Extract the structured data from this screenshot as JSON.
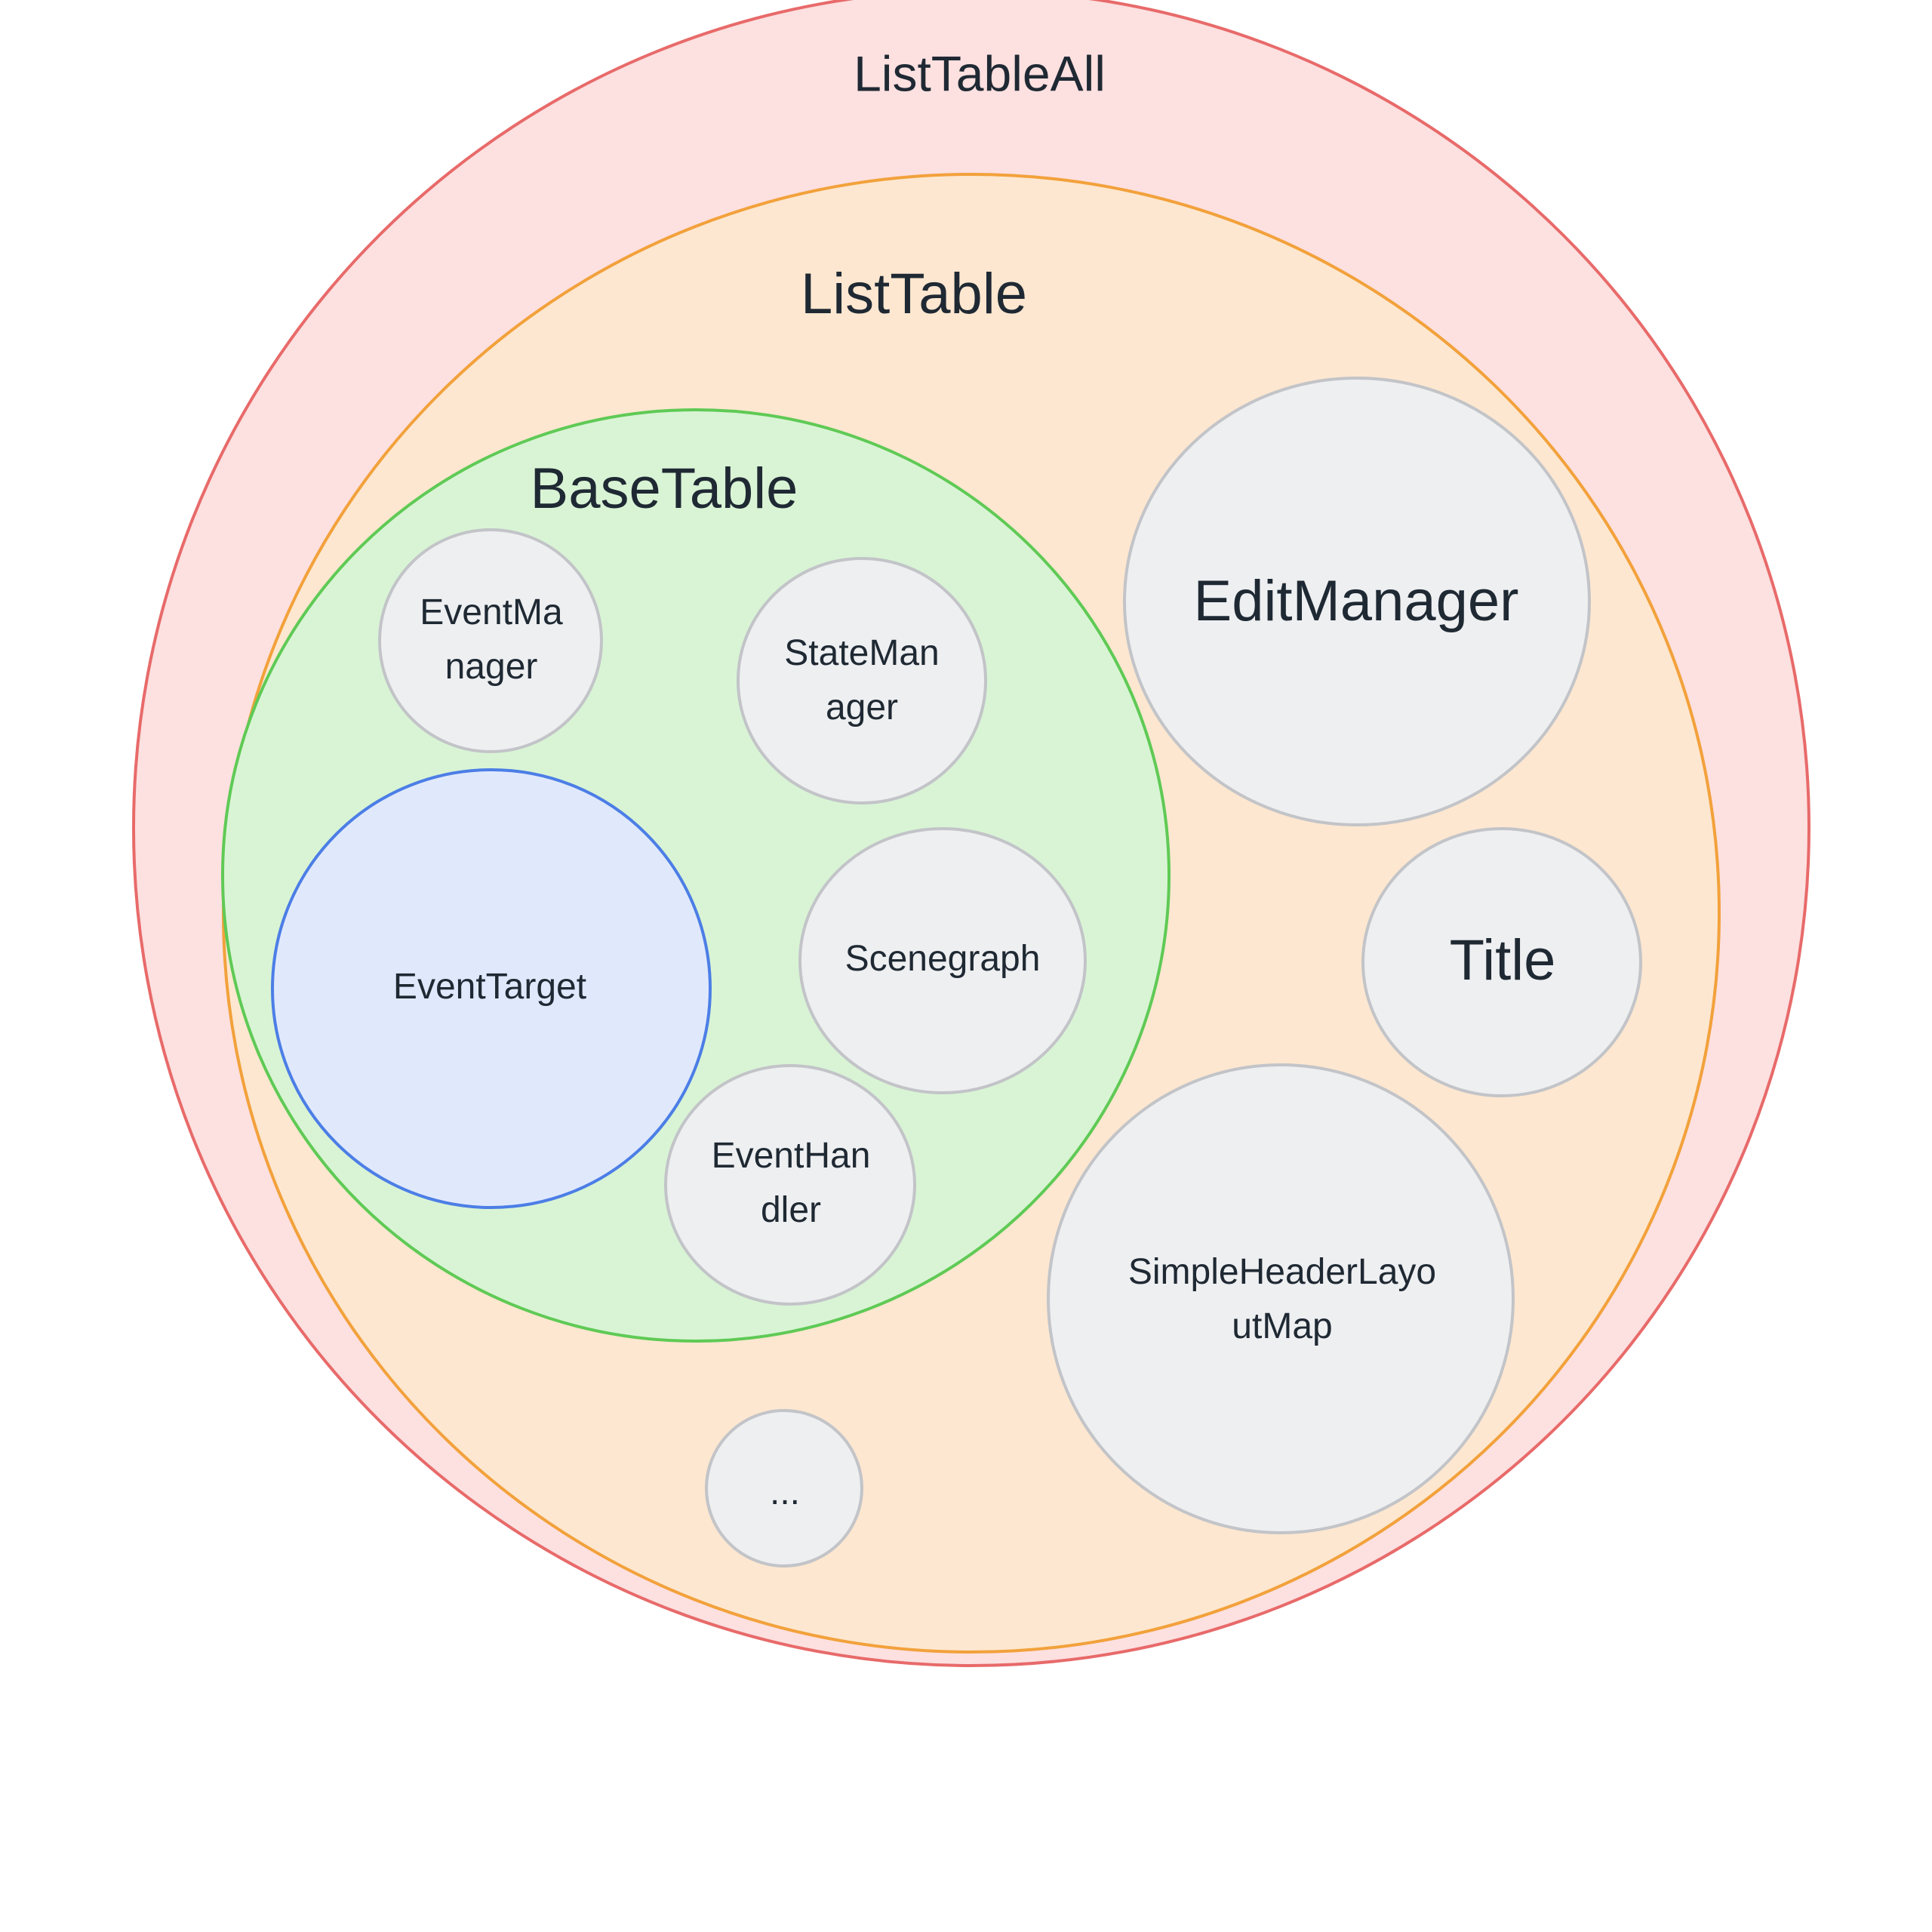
{
  "colors": {
    "list_table_all_fill": "#fde0e0",
    "list_table_all_stroke": "#e86a6a",
    "list_table_fill": "#fde7d0",
    "list_table_stroke": "#f2a13b",
    "base_table_fill": "#d9f4d5",
    "base_table_stroke": "#5fca55",
    "event_target_fill": "#e0e9fc",
    "event_target_stroke": "#4c7ee6",
    "leaf_fill": "#eeeff1",
    "leaf_stroke": "#c2c4c8"
  },
  "groups": {
    "list_table_all": "ListTableAll",
    "list_table": "ListTable",
    "base_table": "BaseTable"
  },
  "nodes": {
    "event_manager": [
      "EventMa",
      "nager"
    ],
    "state_manager": [
      "StateMan",
      "ager"
    ],
    "event_target": [
      "EventTarget"
    ],
    "scenegraph": [
      "Scenegraph"
    ],
    "event_handler": [
      "EventHan",
      "dler"
    ],
    "edit_manager": [
      "EditManager"
    ],
    "title": [
      "Title"
    ],
    "simple_header_layout_map": [
      "SimpleHeaderLayo",
      "utMap"
    ],
    "ellipsis": [
      "..."
    ]
  }
}
